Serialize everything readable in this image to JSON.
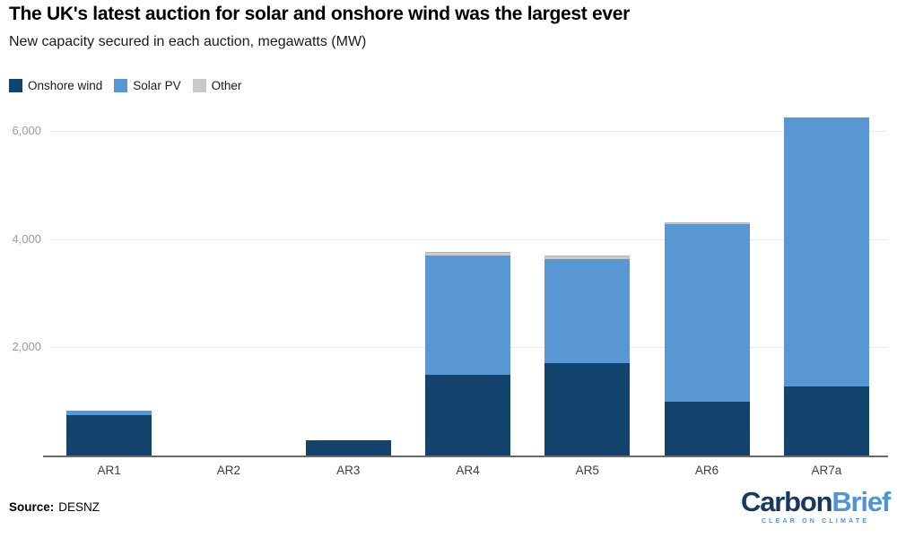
{
  "header": {
    "title": "The UK's latest auction for solar and onshore wind was the largest ever",
    "subtitle": "New capacity secured in each auction, megawatts (MW)"
  },
  "chart_data": {
    "type": "bar",
    "stacked": true,
    "title": "The UK's latest auction for solar and onshore wind was the largest ever",
    "subtitle": "New capacity secured in each auction, megawatts (MW)",
    "categories": [
      "AR1",
      "AR2",
      "AR3",
      "AR4",
      "AR5",
      "AR6",
      "AR7a"
    ],
    "series": [
      {
        "name": "Onshore wind",
        "color": "#12436d",
        "values": [
          749,
          0,
          275,
          1488,
          1704,
          990,
          1270
        ]
      },
      {
        "name": "Solar PV",
        "color": "#5897d4",
        "values": [
          72,
          0,
          0,
          2209,
          1928,
          3293,
          4980
        ]
      },
      {
        "name": "Other",
        "color": "#c9c9c9",
        "values": [
          0,
          0,
          0,
          73,
          65,
          28,
          0
        ]
      }
    ],
    "xlabel": "",
    "ylabel": "megawatts (MW)",
    "ylim": [
      0,
      6500
    ],
    "yticks": [
      2000,
      4000,
      6000
    ],
    "ytick_labels": [
      "2,000",
      "4,000",
      "6,000"
    ],
    "grid": true,
    "legend_position": "top-left"
  },
  "footer": {
    "source_label": "Source:",
    "source_value": "DESNZ",
    "logo": {
      "part1": "Carbon",
      "part2": "Brief",
      "tagline": "CLEAR ON CLIMATE"
    }
  }
}
